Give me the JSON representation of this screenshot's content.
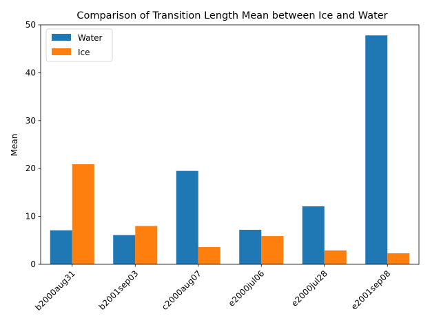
{
  "chart_data": {
    "type": "bar",
    "title": "Comparison of Transition Length Mean between Ice and Water",
    "xlabel": "",
    "ylabel": "Mean",
    "ylim": [
      0,
      50
    ],
    "yticks": [
      0,
      10,
      20,
      30,
      40,
      50
    ],
    "grid": false,
    "legend_position": "top-left",
    "categories": [
      "b2000aug31",
      "b2001sep03",
      "c2000aug07",
      "e2000jul06",
      "e2000jul28",
      "e2001sep08"
    ],
    "series": [
      {
        "name": "Water",
        "color": "#1f77b4",
        "values": [
          7.1,
          6.1,
          19.5,
          7.2,
          12.1,
          47.8
        ]
      },
      {
        "name": "Ice",
        "color": "#ff7f0e",
        "values": [
          20.9,
          8.0,
          3.6,
          5.9,
          2.9,
          2.3
        ]
      }
    ]
  }
}
